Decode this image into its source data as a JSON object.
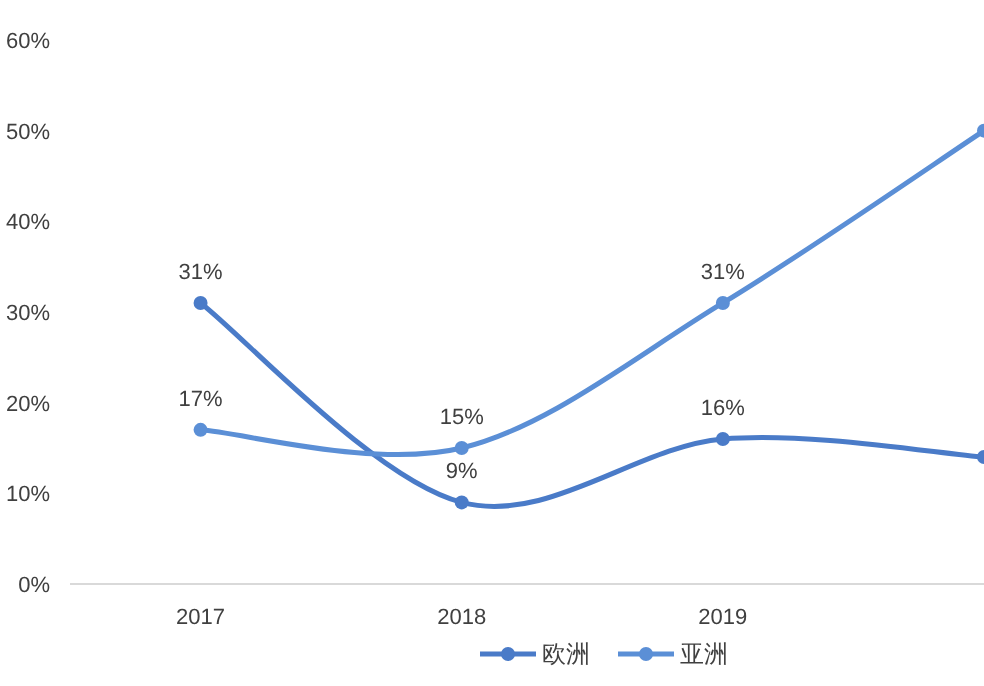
{
  "chart_data": {
    "type": "line",
    "categories": [
      "2017",
      "2018",
      "2019",
      null
    ],
    "series": [
      {
        "name": "欧洲",
        "color": "#4a7bc8",
        "values": [
          31,
          9,
          16,
          14
        ],
        "value_labels": [
          "31%",
          "9%",
          "16%",
          null
        ]
      },
      {
        "name": "亚洲",
        "color": "#5b8fd6",
        "values": [
          17,
          15,
          31,
          50
        ],
        "value_labels": [
          "17%",
          "15%",
          "31%",
          null
        ]
      }
    ],
    "ylim": [
      0,
      60
    ],
    "yticks": [
      {
        "value": 0,
        "label": "0%"
      },
      {
        "value": 10,
        "label": "10%"
      },
      {
        "value": 20,
        "label": "20%"
      },
      {
        "value": 30,
        "label": "30%"
      },
      {
        "value": 40,
        "label": "40%"
      },
      {
        "value": 50,
        "label": "50%"
      },
      {
        "value": 60,
        "label": "60%"
      }
    ],
    "marker": "circle",
    "grid": false,
    "legend": "bottom"
  }
}
